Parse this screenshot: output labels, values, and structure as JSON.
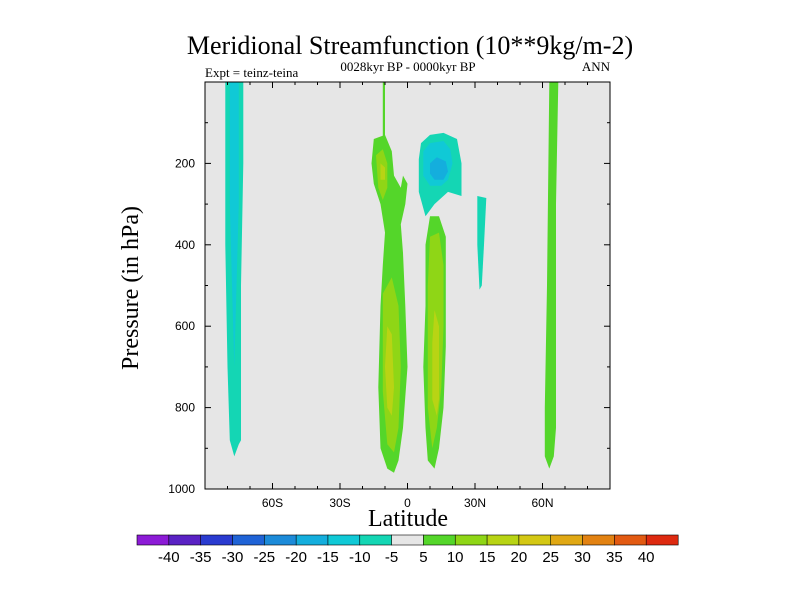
{
  "chart_data": {
    "type": "contour",
    "title": "Meridional Streamfunction (10**9kg/m-2)",
    "experiment": "Expt = teinz-teina",
    "period": "0028kyr BP - 0000kyr BP",
    "season": "ANN",
    "xlabel": "Latitude",
    "ylabel": "Pressure (in hPa)",
    "xlim": [
      -90,
      90
    ],
    "ylim": [
      1000,
      0
    ],
    "x_ticks": [
      {
        "value": -60,
        "label": "60S"
      },
      {
        "value": -30,
        "label": "30S"
      },
      {
        "value": 0,
        "label": "0"
      },
      {
        "value": 30,
        "label": "30N"
      },
      {
        "value": 60,
        "label": "60N"
      }
    ],
    "y_ticks": [
      {
        "value": 200,
        "label": "200"
      },
      {
        "value": 400,
        "label": "400"
      },
      {
        "value": 600,
        "label": "600"
      },
      {
        "value": 800,
        "label": "800"
      },
      {
        "value": 1000,
        "label": "1000"
      }
    ],
    "background_color": "#e6e6e6",
    "colorbar": {
      "labels": [
        "-40",
        "-35",
        "-30",
        "-25",
        "-20",
        "-15",
        "-10",
        "-5",
        "5",
        "10",
        "15",
        "20",
        "25",
        "30",
        "35",
        "40"
      ],
      "colors": [
        "#8c1bd6",
        "#5a22c4",
        "#2a3bd0",
        "#1f63d6",
        "#1c8bd9",
        "#14aedd",
        "#10c9d6",
        "#14d6b4",
        "#e6e6e6",
        "#54d62a",
        "#8fd616",
        "#b8d414",
        "#d4c814",
        "#e0a814",
        "#e28212",
        "#e25a12",
        "#de2a10"
      ]
    },
    "regions": [
      {
        "name": "sh-polar-cell",
        "level_range": [
          -10,
          -5
        ],
        "color": "#14d6b4",
        "points": [
          [
            -81,
            0
          ],
          [
            -73,
            0
          ],
          [
            -73,
            200
          ],
          [
            -74,
            500
          ],
          [
            -74,
            880
          ],
          [
            -75,
            890
          ],
          [
            -77,
            920
          ],
          [
            -79,
            880
          ],
          [
            -80,
            700
          ],
          [
            -81,
            400
          ]
        ]
      },
      {
        "name": "sh-polar-core",
        "level_range": [
          -15,
          -10
        ],
        "color": "#10c9d6",
        "points": [
          [
            -79,
            0
          ],
          [
            -75,
            0
          ],
          [
            -75,
            300
          ],
          [
            -76,
            500
          ],
          [
            -77,
            700
          ],
          [
            -78,
            500
          ],
          [
            -79,
            300
          ]
        ]
      },
      {
        "name": "equatorial-mast",
        "level_range": [
          5,
          10
        ],
        "color": "#54d62a",
        "points": [
          [
            -11,
            0
          ],
          [
            -10,
            0
          ],
          [
            -10,
            200
          ],
          [
            -11,
            200
          ]
        ]
      },
      {
        "name": "south-equatorial-cell",
        "level_range": [
          5,
          10
        ],
        "color": "#54d62a",
        "points": [
          [
            -15,
            140
          ],
          [
            -10,
            130
          ],
          [
            -7,
            170
          ],
          [
            -6,
            230
          ],
          [
            -3,
            260
          ],
          [
            -2,
            230
          ],
          [
            0,
            250
          ],
          [
            -1,
            300
          ],
          [
            -3,
            350
          ],
          [
            -2,
            420
          ],
          [
            -1,
            550
          ],
          [
            0,
            700
          ],
          [
            -2,
            850
          ],
          [
            -4,
            930
          ],
          [
            -6,
            960
          ],
          [
            -9,
            950
          ],
          [
            -12,
            900
          ],
          [
            -13,
            750
          ],
          [
            -12,
            550
          ],
          [
            -11,
            450
          ],
          [
            -10,
            370
          ],
          [
            -12,
            300
          ],
          [
            -15,
            250
          ],
          [
            -16,
            200
          ]
        ]
      },
      {
        "name": "south-equatorial-upper-core",
        "level_range": [
          10,
          15
        ],
        "color": "#8fd616",
        "points": [
          [
            -14,
            180
          ],
          [
            -11,
            165
          ],
          [
            -9,
            200
          ],
          [
            -9,
            260
          ],
          [
            -11,
            290
          ],
          [
            -13,
            260
          ]
        ]
      },
      {
        "name": "south-equatorial-lower-core",
        "level_range": [
          10,
          15
        ],
        "color": "#8fd616",
        "points": [
          [
            -11,
            520
          ],
          [
            -7,
            480
          ],
          [
            -4,
            550
          ],
          [
            -3,
            700
          ],
          [
            -4,
            850
          ],
          [
            -6,
            910
          ],
          [
            -9,
            890
          ],
          [
            -11,
            760
          ]
        ]
      },
      {
        "name": "south-upper-max",
        "level_range": [
          15,
          20
        ],
        "color": "#b8d414",
        "points": [
          [
            -12,
            200
          ],
          [
            -10,
            210
          ],
          [
            -10,
            240
          ],
          [
            -12,
            240
          ]
        ]
      },
      {
        "name": "south-lower-max",
        "level_range": [
          15,
          20
        ],
        "color": "#b8d414",
        "points": [
          [
            -9,
            600
          ],
          [
            -7,
            620
          ],
          [
            -6,
            750
          ],
          [
            -7,
            820
          ],
          [
            -9,
            800
          ],
          [
            -10,
            700
          ]
        ]
      },
      {
        "name": "north-upper-cell",
        "level_range": [
          -10,
          -5
        ],
        "color": "#14d6b4",
        "points": [
          [
            5,
            190
          ],
          [
            6,
            150
          ],
          [
            10,
            130
          ],
          [
            16,
            125
          ],
          [
            22,
            140
          ],
          [
            24,
            200
          ],
          [
            24,
            280
          ],
          [
            18,
            270
          ],
          [
            12,
            300
          ],
          [
            8,
            330
          ],
          [
            5,
            270
          ]
        ]
      },
      {
        "name": "north-upper-core",
        "level_range": [
          -15,
          -10
        ],
        "color": "#10c9d6",
        "points": [
          [
            7,
            170
          ],
          [
            10,
            150
          ],
          [
            16,
            145
          ],
          [
            19,
            165
          ],
          [
            20,
            200
          ],
          [
            18,
            240
          ],
          [
            15,
            255
          ],
          [
            10,
            255
          ],
          [
            7,
            230
          ]
        ]
      },
      {
        "name": "north-upper-max",
        "level_range": [
          -20,
          -15
        ],
        "color": "#14aedd",
        "points": [
          [
            10,
            200
          ],
          [
            13,
            185
          ],
          [
            17,
            195
          ],
          [
            18,
            220
          ],
          [
            16,
            240
          ],
          [
            12,
            240
          ],
          [
            10,
            225
          ]
        ]
      },
      {
        "name": "north-equatorial-cell",
        "level_range": [
          5,
          10
        ],
        "color": "#54d62a",
        "points": [
          [
            10,
            330
          ],
          [
            14,
            330
          ],
          [
            17,
            380
          ],
          [
            17,
            500
          ],
          [
            17,
            650
          ],
          [
            16,
            800
          ],
          [
            14,
            900
          ],
          [
            12,
            950
          ],
          [
            9,
            930
          ],
          [
            8,
            850
          ],
          [
            7,
            700
          ],
          [
            8,
            550
          ],
          [
            8,
            400
          ]
        ]
      },
      {
        "name": "north-equatorial-core",
        "level_range": [
          10,
          15
        ],
        "color": "#8fd616",
        "points": [
          [
            10,
            380
          ],
          [
            14,
            370
          ],
          [
            16,
            450
          ],
          [
            16,
            600
          ],
          [
            15,
            750
          ],
          [
            13,
            850
          ],
          [
            11,
            900
          ],
          [
            9,
            800
          ],
          [
            9,
            650
          ],
          [
            9,
            500
          ]
        ]
      },
      {
        "name": "north-equatorial-max",
        "level_range": [
          15,
          20
        ],
        "color": "#b8d414",
        "points": [
          [
            12,
            560
          ],
          [
            14,
            600
          ],
          [
            14,
            780
          ],
          [
            13,
            820
          ],
          [
            11,
            780
          ],
          [
            11,
            640
          ]
        ]
      },
      {
        "name": "north-subtropical-cell",
        "level_range": [
          -10,
          -5
        ],
        "color": "#14d6b4",
        "points": [
          [
            31,
            280
          ],
          [
            35,
            285
          ],
          [
            34,
            400
          ],
          [
            33,
            500
          ],
          [
            32,
            510
          ],
          [
            31,
            400
          ]
        ]
      },
      {
        "name": "nh-polar-cell",
        "level_range": [
          5,
          10
        ],
        "color": "#54d62a",
        "points": [
          [
            63,
            0
          ],
          [
            67,
            0
          ],
          [
            66,
            300
          ],
          [
            66,
            500
          ],
          [
            66,
            850
          ],
          [
            65,
            920
          ],
          [
            63,
            950
          ],
          [
            61,
            920
          ],
          [
            61,
            800
          ],
          [
            62,
            500
          ]
        ]
      }
    ]
  }
}
